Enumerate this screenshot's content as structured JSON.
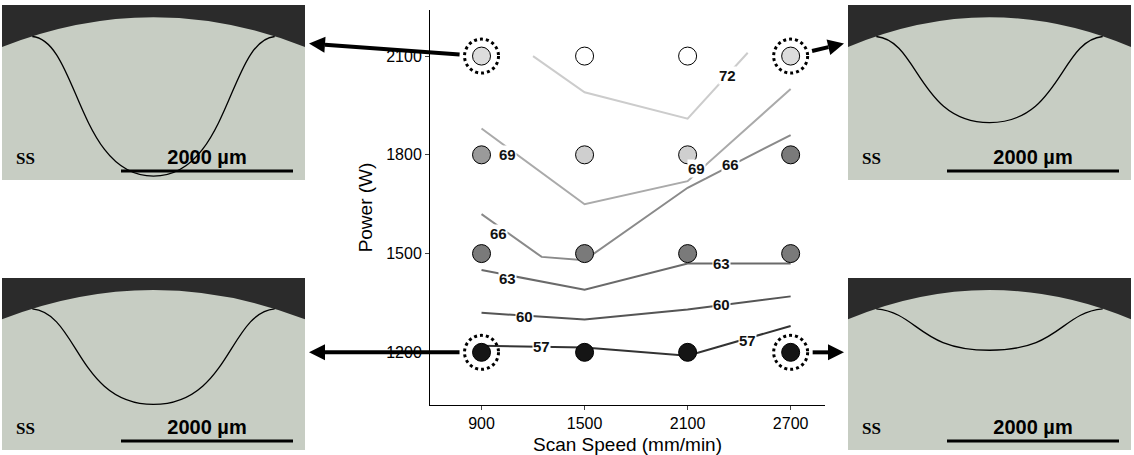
{
  "chart_data": {
    "type": "scatter",
    "xlabel": "Scan Speed (mm/min)",
    "ylabel": "Power (W)",
    "xlim": [
      600,
      2900
    ],
    "ylim": [
      1040,
      2240
    ],
    "xticks": [
      900,
      1500,
      2100,
      2700
    ],
    "yticks": [
      1200,
      1500,
      1800,
      2100
    ],
    "grid": false,
    "points": {
      "x": [
        900,
        1500,
        2100,
        2700,
        900,
        1500,
        2100,
        2700,
        900,
        1500,
        2100,
        2700,
        900,
        1500,
        2100,
        2700
      ],
      "y": [
        1200,
        1200,
        1200,
        1200,
        1500,
        1500,
        1500,
        1500,
        1800,
        1800,
        1800,
        1800,
        2100,
        2100,
        2100,
        2100
      ],
      "colors": [
        "#151515",
        "#151515",
        "#151515",
        "#151515",
        "#7a7a7a",
        "#7a7a7a",
        "#7a7a7a",
        "#7a7a7a",
        "#9a9a9a",
        "#cfcfcf",
        "#cfcfcf",
        "#7a7a7a",
        "#dcdcdc",
        "#ffffff",
        "#ffffff",
        "#dcdcdc"
      ]
    },
    "contours": [
      {
        "level": 57,
        "color": "#333333",
        "x": [
          900,
          1500,
          2100,
          2700
        ],
        "y": [
          1220,
          1215,
          1190,
          1280
        ],
        "label_positions": [
          {
            "x": 1250,
            "y": 1218
          },
          {
            "x": 2450,
            "y": 1235
          }
        ]
      },
      {
        "level": 60,
        "color": "#555555",
        "x": [
          900,
          1500,
          2100,
          2700
        ],
        "y": [
          1320,
          1300,
          1330,
          1370
        ],
        "label_positions": [
          {
            "x": 1150,
            "y": 1310
          },
          {
            "x": 2300,
            "y": 1345
          }
        ]
      },
      {
        "level": 63,
        "color": "#6a6a6a",
        "x": [
          900,
          1500,
          2100,
          2700
        ],
        "y": [
          1450,
          1390,
          1470,
          1470
        ],
        "label_positions": [
          {
            "x": 1050,
            "y": 1425
          },
          {
            "x": 2300,
            "y": 1470
          }
        ]
      },
      {
        "level": 66,
        "color": "#8a8a8a",
        "x": [
          900,
          1250,
          1500,
          2100,
          2700
        ],
        "y": [
          1620,
          1490,
          1480,
          1700,
          1860
        ],
        "label_positions": [
          {
            "x": 1000,
            "y": 1560
          },
          {
            "x": 2350,
            "y": 1770
          }
        ]
      },
      {
        "level": 69,
        "color": "#aaaaaa",
        "x": [
          900,
          1500,
          2100,
          2700
        ],
        "y": [
          1880,
          1650,
          1720,
          2000
        ],
        "label_positions": [
          {
            "x": 1050,
            "y": 1800
          },
          {
            "x": 2150,
            "y": 1760
          }
        ]
      },
      {
        "level": 72,
        "color": "#cccccc",
        "x": [
          1200,
          1500,
          2100,
          2450
        ],
        "y": [
          2100,
          1990,
          1910,
          2110
        ],
        "label_positions": [
          {
            "x": 2330,
            "y": 2040
          }
        ]
      }
    ],
    "micrographs": [
      {
        "x": 900,
        "y": 2100,
        "label": "SS",
        "scale_bar": "2000 µm"
      },
      {
        "x": 2700,
        "y": 2100,
        "label": "SS",
        "scale_bar": "2000 µm"
      },
      {
        "x": 900,
        "y": 1200,
        "label": "SS",
        "scale_bar": "2000 µm"
      },
      {
        "x": 2700,
        "y": 1200,
        "label": "SS",
        "scale_bar": "2000 µm"
      }
    ]
  }
}
